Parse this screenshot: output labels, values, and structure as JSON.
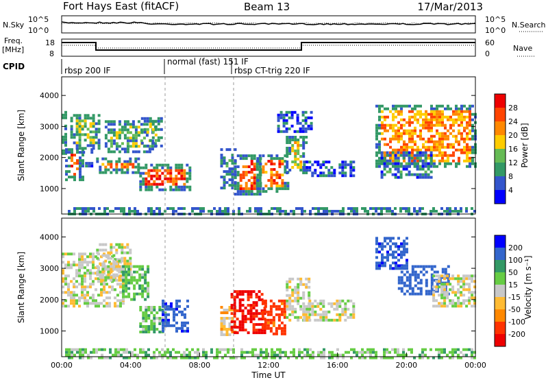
{
  "header": {
    "station": "Fort Hays East (fitACF)",
    "beam": "Beam 13",
    "date": "17/Mar/2013"
  },
  "panels": {
    "noise": {
      "left_label": "N.Sky",
      "right_label": "N.Search",
      "left_ticks": [
        "10^5",
        "10^0"
      ],
      "right_ticks": [
        "10^5",
        "10^0"
      ]
    },
    "freq": {
      "left_label_1": "Freq.",
      "left_label_2": "[MHz]",
      "right_label": "Nave",
      "left_ticks": [
        "18",
        "8"
      ],
      "right_ticks": [
        "60",
        "0"
      ]
    },
    "cpid": {
      "label": "CPID",
      "segments": [
        "rbsp 200 IF",
        "normal (fast) 151 IF",
        "rbsp CT-trig 220 IF"
      ]
    }
  },
  "chart_data": [
    {
      "type": "heatmap",
      "panel": "power",
      "xlabel": "",
      "ylabel": "Slant Range [km]",
      "xlim": [
        0,
        24
      ],
      "ylim": [
        180,
        4600
      ],
      "yticks": [
        1000,
        2000,
        3000,
        4000
      ],
      "colorbar": {
        "label": "Power [dB]",
        "ticks": [
          4,
          8,
          12,
          16,
          20,
          24,
          28
        ],
        "colors": [
          "#0000ff",
          "#3355cc",
          "#339966",
          "#66bb55",
          "#ffcc00",
          "#ff8800",
          "#ff4400",
          "#ee0000"
        ]
      },
      "regions": [
        {
          "x": [
            0.0,
            0.3
          ],
          "y": [
            2100,
            3500
          ],
          "level": 16
        },
        {
          "x": [
            0.2,
            1.3
          ],
          "y": [
            1300,
            2300
          ],
          "level": 26
        },
        {
          "x": [
            0.5,
            2.2
          ],
          "y": [
            2300,
            3400
          ],
          "level": 14
        },
        {
          "x": [
            1.2,
            1.8
          ],
          "y": [
            1700,
            2300
          ],
          "level": 8
        },
        {
          "x": [
            2.0,
            4.5
          ],
          "y": [
            1500,
            2000
          ],
          "level": 22
        },
        {
          "x": [
            2.5,
            5.5
          ],
          "y": [
            2200,
            3200
          ],
          "level": 12
        },
        {
          "x": [
            4.6,
            5.8
          ],
          "y": [
            2400,
            3300
          ],
          "level": 14
        },
        {
          "x": [
            4.5,
            7.5
          ],
          "y": [
            1000,
            1800
          ],
          "level": 26
        },
        {
          "x": [
            9.2,
            10.0
          ],
          "y": [
            1000,
            2300
          ],
          "level": 10
        },
        {
          "x": [
            10.0,
            11.5
          ],
          "y": [
            800,
            2100
          ],
          "level": 26
        },
        {
          "x": [
            11.3,
            13.2
          ],
          "y": [
            900,
            2100
          ],
          "level": 24
        },
        {
          "x": [
            13.0,
            14.2
          ],
          "y": [
            1500,
            2700
          ],
          "level": 18
        },
        {
          "x": [
            12.5,
            14.5
          ],
          "y": [
            2800,
            3500
          ],
          "level": 6
        },
        {
          "x": [
            14.0,
            17.0
          ],
          "y": [
            1400,
            1900
          ],
          "level": 6
        },
        {
          "x": [
            18.2,
            24.0
          ],
          "y": [
            1700,
            3700
          ],
          "level": 22
        },
        {
          "x": [
            18.5,
            21.5
          ],
          "y": [
            1400,
            2200
          ],
          "level": 8
        },
        {
          "x": [
            0.2,
            24.0
          ],
          "y": [
            180,
            400
          ],
          "level": 12
        }
      ]
    },
    {
      "type": "heatmap",
      "panel": "velocity",
      "xlabel": "Time UT",
      "ylabel": "Slant Range [km]",
      "xlim": [
        0,
        24
      ],
      "ylim": [
        180,
        4600
      ],
      "xticks": [
        "00:00",
        "04:00",
        "08:00",
        "12:00",
        "16:00",
        "20:00",
        "00:00"
      ],
      "yticks": [
        1000,
        2000,
        3000,
        4000
      ],
      "colorbar": {
        "label": "Velocity [m s⁻¹]",
        "ticks": [
          200,
          100,
          50,
          15,
          -15,
          -50,
          -100,
          -200
        ],
        "colors": [
          "#0000ff",
          "#3366cc",
          "#339966",
          "#66cc44",
          "#c8c8c8",
          "#ffbb33",
          "#ff8800",
          "#ff3300",
          "#ee0000"
        ]
      },
      "regions": [
        {
          "x": [
            0.0,
            3.5
          ],
          "y": [
            1800,
            3500
          ],
          "level": 0
        },
        {
          "x": [
            2.0,
            4.0
          ],
          "y": [
            2600,
            3800
          ],
          "level": 0
        },
        {
          "x": [
            3.5,
            5.0
          ],
          "y": [
            2000,
            3100
          ],
          "level": 40
        },
        {
          "x": [
            4.5,
            6.0
          ],
          "y": [
            1000,
            1800
          ],
          "level": 35
        },
        {
          "x": [
            5.8,
            7.3
          ],
          "y": [
            1000,
            2000
          ],
          "level": 180
        },
        {
          "x": [
            9.2,
            10.0
          ],
          "y": [
            800,
            1800
          ],
          "level": -30
        },
        {
          "x": [
            9.8,
            11.8
          ],
          "y": [
            900,
            2300
          ],
          "level": -210
        },
        {
          "x": [
            11.6,
            13.0
          ],
          "y": [
            900,
            2000
          ],
          "level": -120
        },
        {
          "x": [
            13.0,
            14.3
          ],
          "y": [
            1300,
            2700
          ],
          "level": 0
        },
        {
          "x": [
            14.0,
            17.0
          ],
          "y": [
            1300,
            2000
          ],
          "level": 0
        },
        {
          "x": [
            18.2,
            20.0
          ],
          "y": [
            3000,
            4000
          ],
          "level": 180
        },
        {
          "x": [
            19.5,
            22.5
          ],
          "y": [
            2200,
            3100
          ],
          "level": 160
        },
        {
          "x": [
            21.5,
            24.0
          ],
          "y": [
            1800,
            2800
          ],
          "level": 0
        },
        {
          "x": [
            0.2,
            24.0
          ],
          "y": [
            180,
            450
          ],
          "level": 30
        }
      ]
    }
  ]
}
